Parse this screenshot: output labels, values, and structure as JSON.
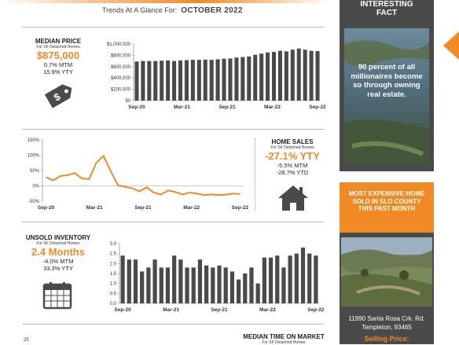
{
  "header": {
    "subtitle_prefix": "Trends At A Glance For:",
    "month": "OCTOBER 2022"
  },
  "median_price": {
    "title": "MEDIAN PRICE",
    "subtitle": "For SF Detached Homes",
    "value": "$875,000",
    "mtm": "0.7% MTM",
    "ytd": "15.9% YTY"
  },
  "home_sales": {
    "title": "HOME SALES",
    "subtitle": "For SF Detached Homes",
    "value": "-27.1% YTY",
    "mtm": "-5.5% MTM",
    "ytd": "-28.7% YTD"
  },
  "unsold_inventory": {
    "title": "UNSOLD INVENTORY",
    "subtitle": "For SF Detached Homes",
    "value": "2.4 Months",
    "mtm": "-4.0% MTM",
    "ytd": "33.3% YTY"
  },
  "time_on_market": {
    "title": "MEDIAN TIME ON MARKET",
    "subtitle": "For SF Detached Homes",
    "tick": "25"
  },
  "sidebar": {
    "fact_title_line1": "INTERESTING",
    "fact_title_line2": "FACT",
    "fact_text": "90 percent of all millionaires become so through owning real estate.",
    "expensive_title": "MOST EXPENSIVE HOME SOLD IN SLO COUNTY THIS PAST MONTH",
    "address_line1": "11990 Santa Rosa Crk. Rd.",
    "address_line2": "Templeton, 93465",
    "selling_price_label": "Selling Price:"
  },
  "colors": {
    "accent": "#f08a24",
    "bar": "#4a4a4a",
    "dark_panel": "#4a4a4a"
  },
  "chart_data": [
    {
      "type": "bar",
      "xticks": [
        "Sep-20",
        "Mar-21",
        "Sep-21",
        "Mar-22",
        "Sep-22"
      ],
      "yticks": [
        "$0",
        "$200,000",
        "$400,000",
        "$600,000",
        "$800,000",
        "$1,000,000"
      ],
      "ylim": [
        0,
        1000000
      ],
      "values": [
        690000,
        700000,
        700000,
        700000,
        705000,
        710000,
        700000,
        710000,
        715000,
        720000,
        720000,
        725000,
        720000,
        730000,
        740000,
        745000,
        760000,
        770000,
        780000,
        810000,
        830000,
        850000,
        860000,
        880000,
        870000,
        900000,
        920000,
        900000,
        880000,
        875000
      ]
    },
    {
      "type": "line",
      "xticks": [
        "Sep-20",
        "Mar-21",
        "Sep-21",
        "Mar-22",
        "Sep-22"
      ],
      "yticks": [
        "-50%",
        "0%",
        "50%",
        "100%",
        "150%"
      ],
      "ylim": [
        -50,
        150
      ],
      "values": [
        28,
        18,
        32,
        35,
        42,
        24,
        22,
        75,
        98,
        48,
        2,
        -3,
        -8,
        -18,
        -5,
        -22,
        -28,
        -15,
        -20,
        -28,
        -22,
        -25,
        -30,
        -28,
        -30,
        -29,
        -25,
        -27
      ]
    },
    {
      "type": "bar",
      "xticks": [
        "Sep-20",
        "Mar-21",
        "Sep-21",
        "Mar-22",
        "Sep-22"
      ],
      "yticks": [
        "0.0",
        "0.5",
        "1.0",
        "1.5",
        "2.0",
        "2.5",
        "3.0"
      ],
      "ylim": [
        0,
        3
      ],
      "values": [
        2.4,
        2.2,
        2.2,
        1.6,
        1.8,
        2.2,
        1.8,
        1.8,
        2.4,
        2.2,
        1.8,
        1.8,
        2.2,
        1.9,
        1.8,
        1.9,
        1.8,
        1.6,
        1.2,
        1.5,
        1.8,
        1.0,
        2.3,
        2.3,
        2.4,
        1.8,
        2.4,
        2.5,
        2.8,
        2.5,
        2.4
      ]
    }
  ]
}
